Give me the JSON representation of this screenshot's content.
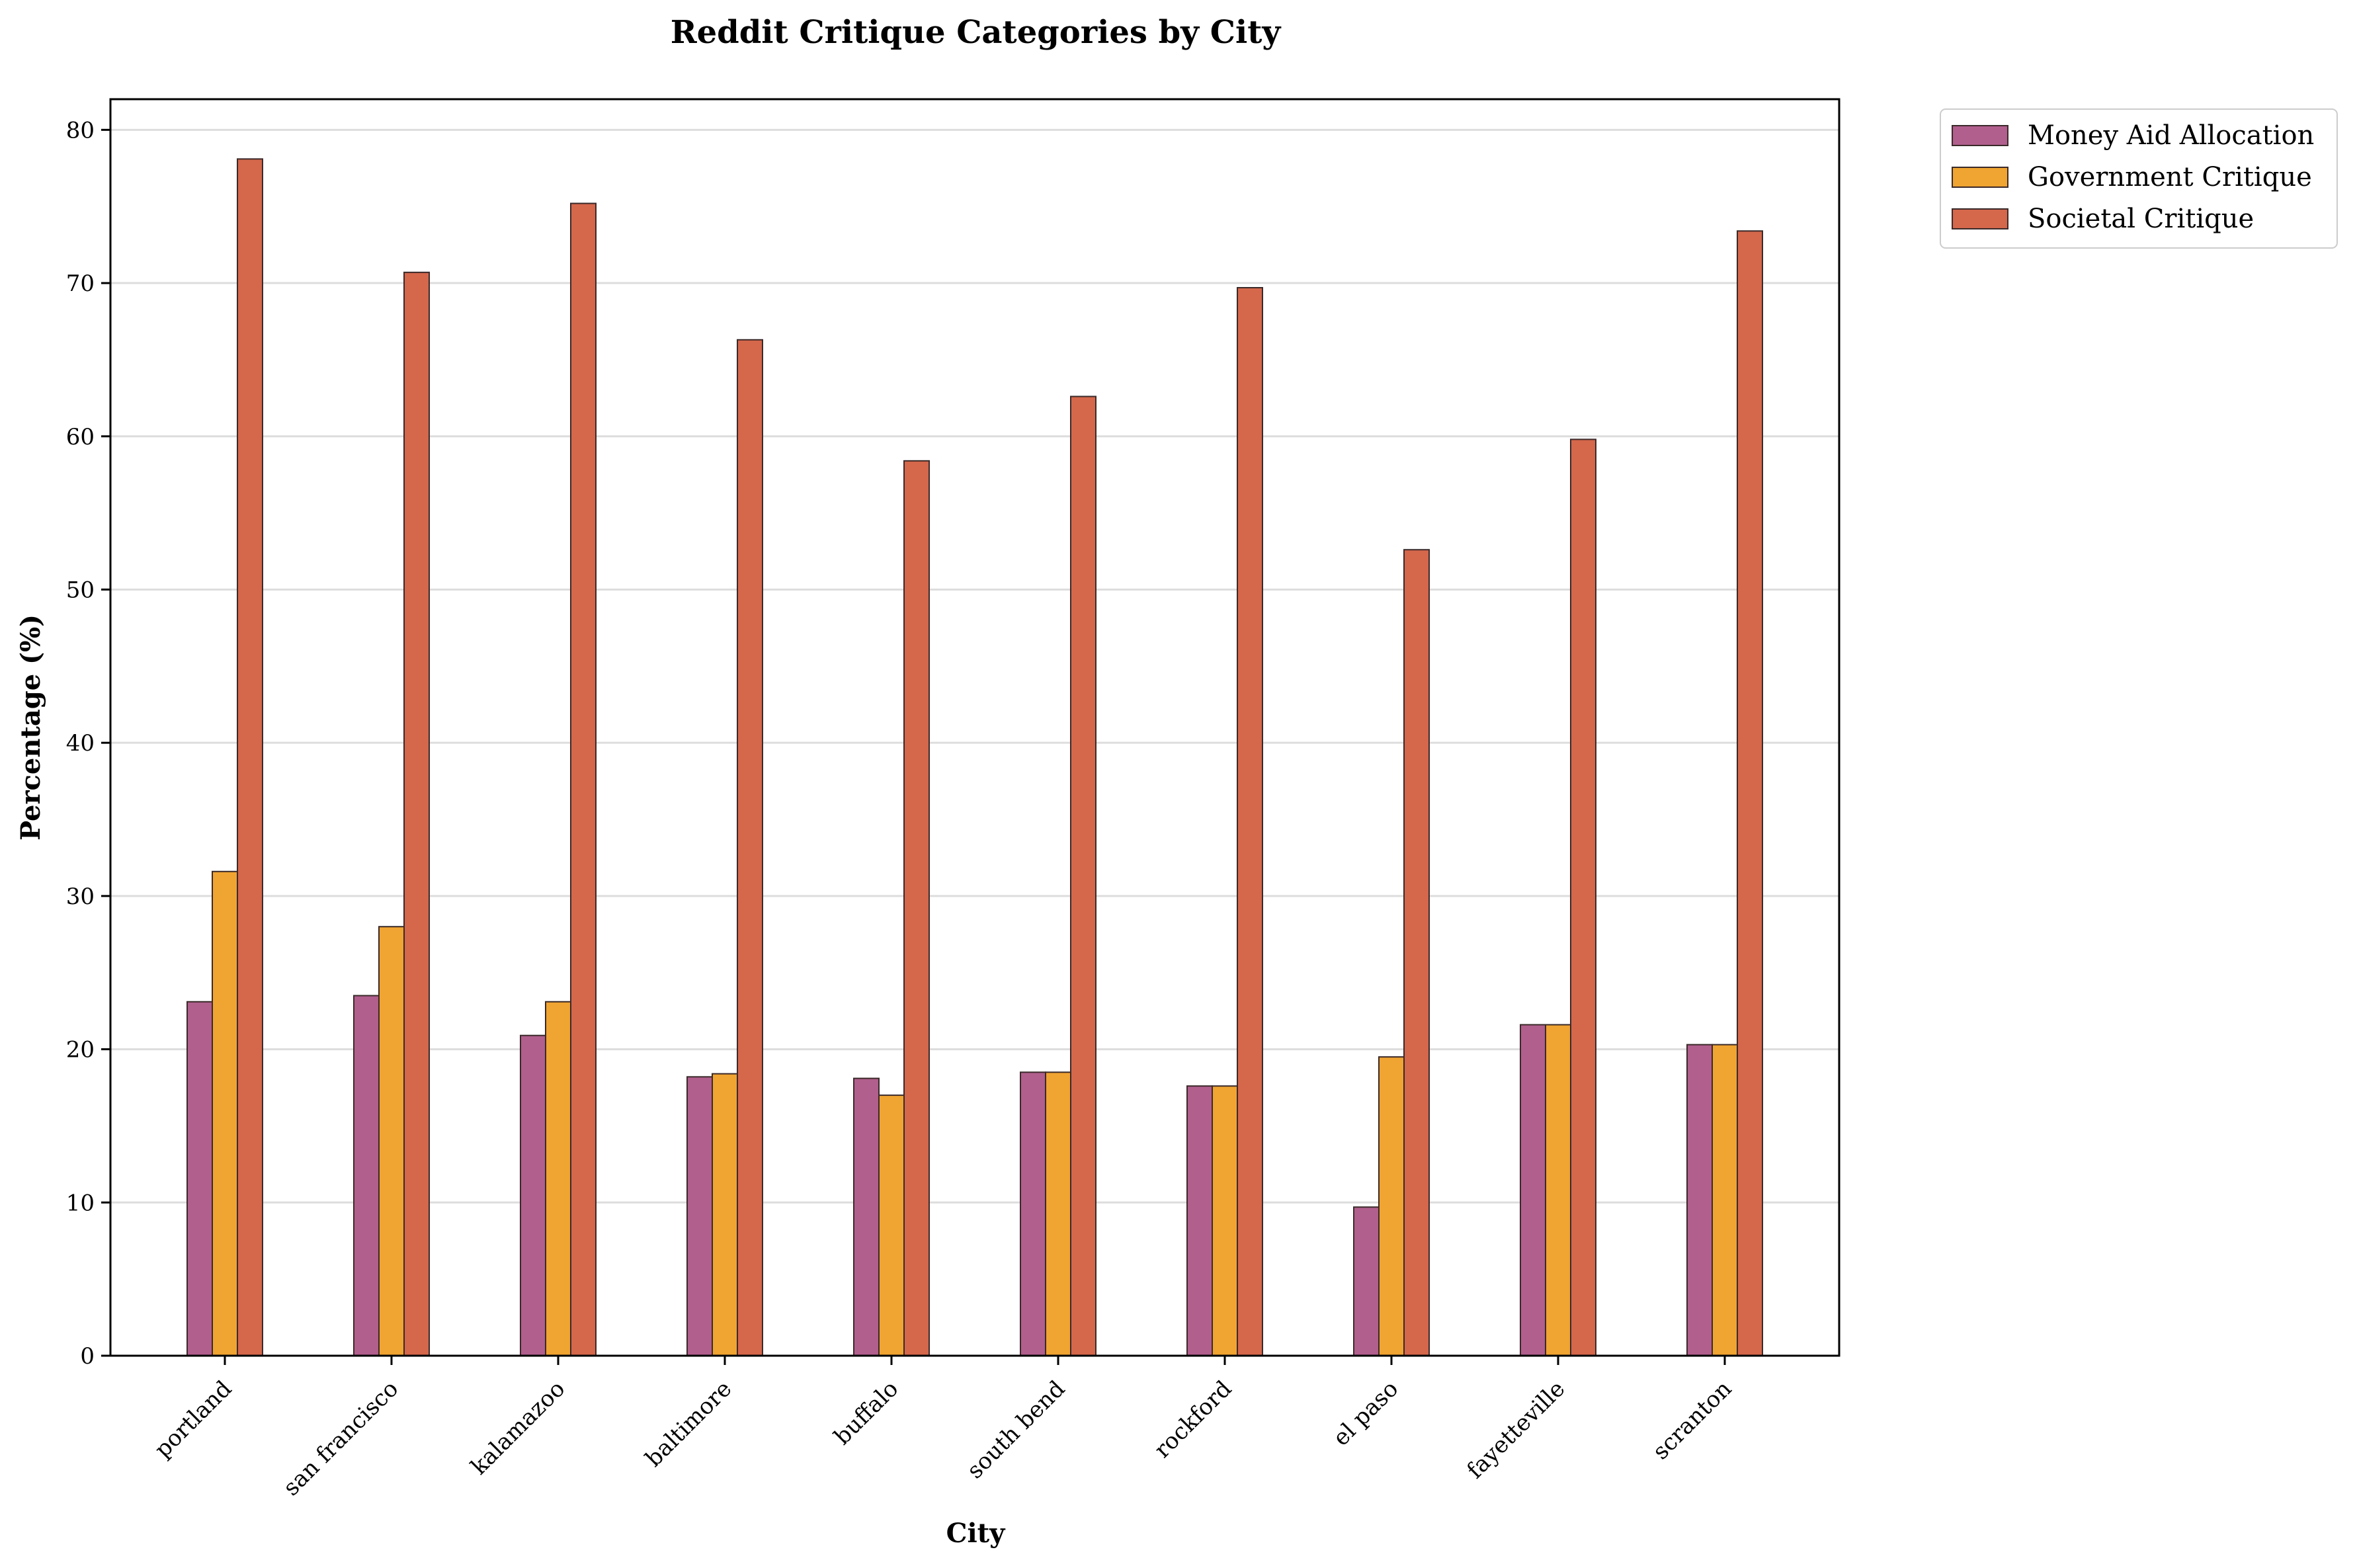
{
  "chart_data": {
    "type": "bar",
    "title": "Reddit Critique Categories by City",
    "xlabel": "City",
    "ylabel": "Percentage (%)",
    "ylim": [
      0,
      82
    ],
    "yticks": [
      0,
      10,
      20,
      30,
      40,
      50,
      60,
      70,
      80
    ],
    "grid": "horizontal",
    "legend_position": "outside top-right",
    "categories": [
      "portland",
      "san francisco",
      "kalamazoo",
      "baltimore",
      "buffalo",
      "south bend",
      "rockford",
      "el paso",
      "fayetteville",
      "scranton"
    ],
    "series": [
      {
        "name": "Money Aid Allocation",
        "color": "#b15f8d",
        "values": [
          23.1,
          23.5,
          20.9,
          18.2,
          18.1,
          18.5,
          17.6,
          9.7,
          21.6,
          20.3
        ]
      },
      {
        "name": "Government Critique",
        "color": "#f0a431",
        "values": [
          31.6,
          28.0,
          23.1,
          18.4,
          17.0,
          18.5,
          17.6,
          19.5,
          21.6,
          20.3
        ]
      },
      {
        "name": "Societal Critique",
        "color": "#d5674b",
        "values": [
          78.1,
          70.7,
          75.2,
          66.3,
          58.4,
          62.6,
          69.7,
          52.6,
          59.8,
          73.4
        ]
      }
    ]
  }
}
